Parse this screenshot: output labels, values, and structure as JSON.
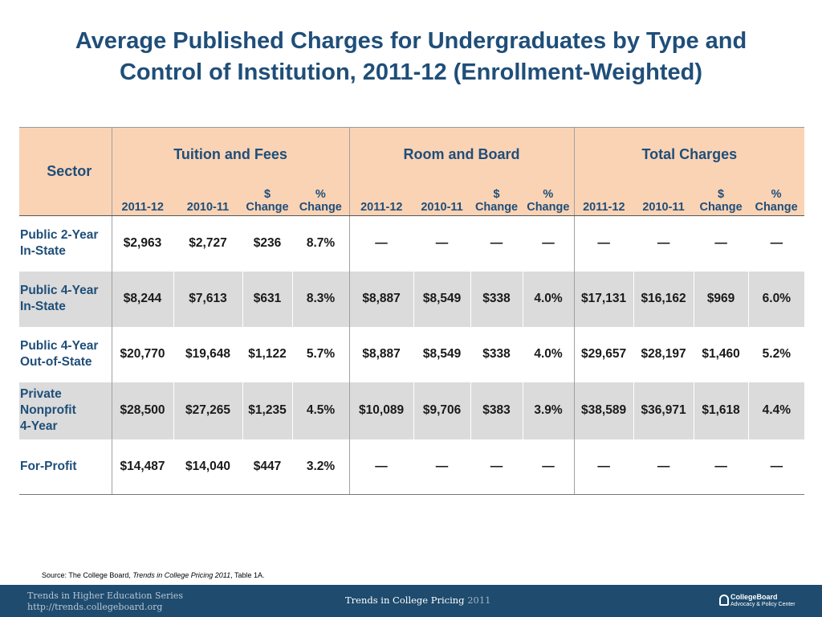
{
  "title": "Average Published Charges for Undergraduates by Type and Control of Institution, 2011-12 (Enrollment-Weighted)",
  "table": {
    "sector_header": "Sector",
    "groups": [
      "Tuition and Fees",
      "Room and Board",
      "Total Charges"
    ],
    "subheaders": [
      [
        "2011-12",
        "",
        "2010-11",
        "",
        "$",
        "Change",
        "%",
        "Change"
      ],
      [
        "2011-12",
        "",
        "2010-11",
        "",
        "$",
        "Change",
        "%",
        "Change"
      ],
      [
        "2011-12",
        "",
        "2010-11",
        "",
        "$",
        "Change",
        "%",
        "Change"
      ]
    ],
    "rows": [
      {
        "sector": [
          "Public 2-Year",
          "In-State"
        ],
        "values": [
          "$2,963",
          "$2,727",
          "$236",
          "8.7%",
          "—",
          "—",
          "—",
          "—",
          "—",
          "—",
          "—",
          "—"
        ]
      },
      {
        "sector": [
          "Public 4-Year",
          "In-State"
        ],
        "values": [
          "$8,244",
          "$7,613",
          "$631",
          "8.3%",
          "$8,887",
          "$8,549",
          "$338",
          "4.0%",
          "$17,131",
          "$16,162",
          "$969",
          "6.0%"
        ]
      },
      {
        "sector": [
          "Public 4-Year",
          "Out-of-State"
        ],
        "values": [
          "$20,770",
          "$19,648",
          "$1,122",
          "5.7%",
          "$8,887",
          "$8,549",
          "$338",
          "4.0%",
          "$29,657",
          "$28,197",
          "$1,460",
          "5.2%"
        ]
      },
      {
        "sector": [
          "Private",
          "Nonprofit",
          "4-Year"
        ],
        "values": [
          "$28,500",
          "$27,265",
          "$1,235",
          "4.5%",
          "$10,089",
          "$9,706",
          "$383",
          "3.9%",
          "$38,589",
          "$36,971",
          "$1,618",
          "4.4%"
        ]
      },
      {
        "sector": [
          "For-Profit"
        ],
        "values": [
          "$14,487",
          "$14,040",
          "$447",
          "3.2%",
          "—",
          "—",
          "—",
          "—",
          "—",
          "—",
          "—",
          "—"
        ]
      }
    ]
  },
  "source": {
    "prefix": "Source: The College Board, ",
    "title": "Trends in College Pricing 2011",
    "suffix": ", Table 1A."
  },
  "footer": {
    "series_line1": "Trends in Higher Education Series",
    "series_line2": "http://trends.collegeboard.org",
    "center_text": "Trends in College Pricing ",
    "center_year": "2011",
    "logo_name": "CollegeBoard",
    "logo_sub": "Advocacy & Policy Center"
  }
}
